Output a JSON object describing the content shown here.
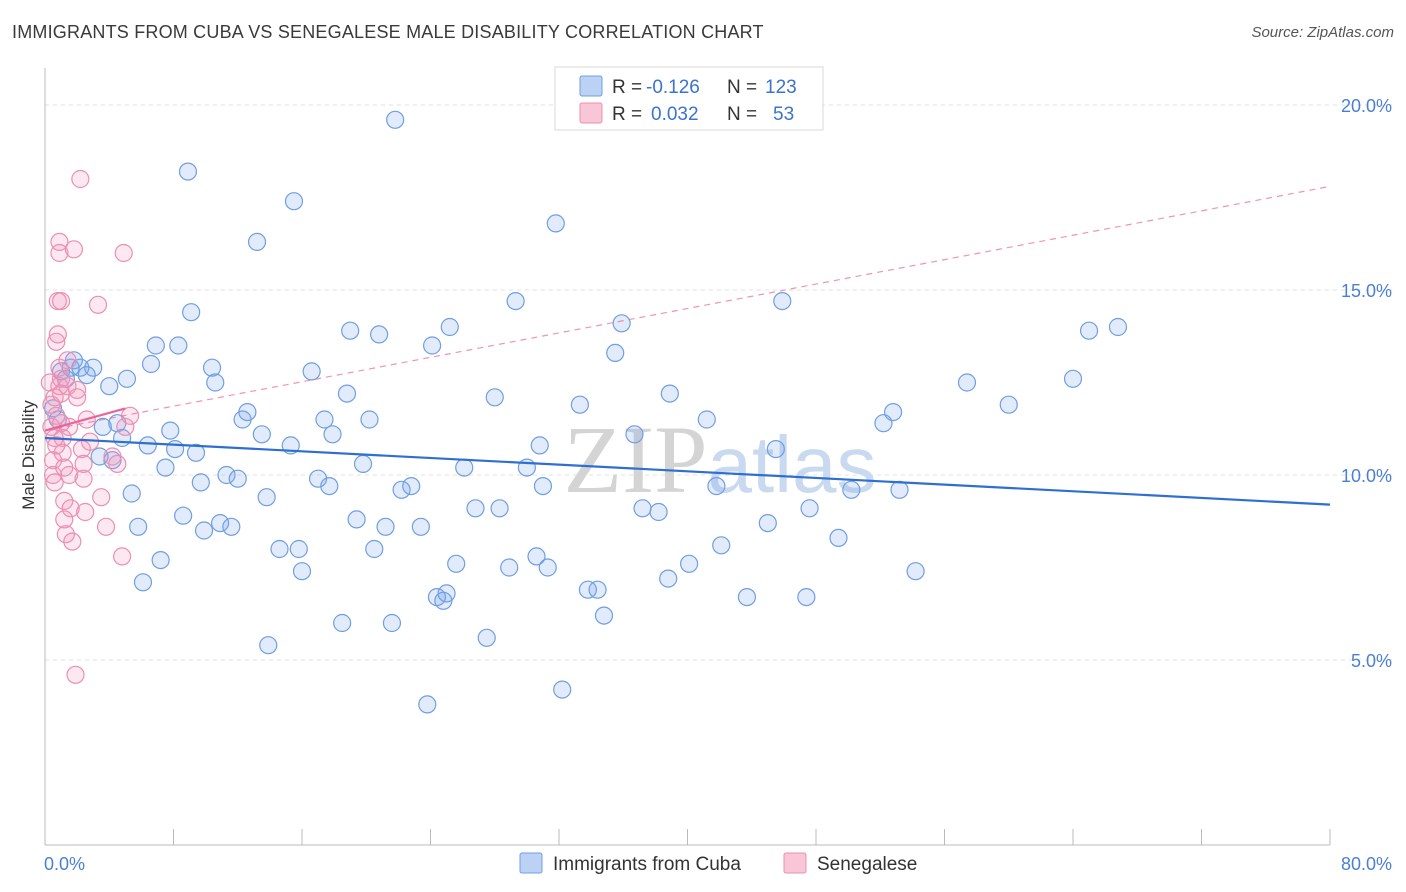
{
  "title": "IMMIGRANTS FROM CUBA VS SENEGALESE MALE DISABILITY CORRELATION CHART",
  "source": "Source: ZipAtlas.com",
  "watermark": "ZIPatlas",
  "colors": {
    "blue_fill": "rgba(120,165,235,0.22)",
    "blue_stroke": "#6f9fe0",
    "blue_line": "#2f6fd0",
    "pink_fill": "rgba(240,150,185,0.22)",
    "pink_stroke": "#ec8fb2",
    "pink_line": "#e8659a",
    "tick_label": "#4a7fd6",
    "grid": "#e2e2e2"
  },
  "stats_legend": [
    {
      "r_label": "R =",
      "r_value": "-0.126",
      "n_label": "N =",
      "n_value": "123"
    },
    {
      "r_label": "R =",
      "r_value": "0.032",
      "n_label": "N =",
      "n_value": "53"
    }
  ],
  "chart_data": {
    "type": "scatter",
    "xlabel": "",
    "ylabel": "Male Disability",
    "xlim": [
      0,
      80
    ],
    "ylim": [
      0,
      21
    ],
    "x_tick_labels": [
      {
        "value": 0,
        "label": "0.0%"
      },
      {
        "value": 80,
        "label": "80.0%"
      }
    ],
    "y_tick_labels": [
      {
        "value": 5,
        "label": "5.0%"
      },
      {
        "value": 10,
        "label": "10.0%"
      },
      {
        "value": 15,
        "label": "15.0%"
      },
      {
        "value": 20,
        "label": "20.0%"
      }
    ],
    "grid": true,
    "legend_position": "bottom",
    "series": [
      {
        "name": "Immigrants from Cuba",
        "color": "#6f9fe0",
        "trend": {
          "x": [
            0,
            80
          ],
          "y": [
            11.0,
            9.2
          ],
          "style": "solid"
        },
        "points": [
          [
            0.5,
            11.8
          ],
          [
            0.8,
            11.5
          ],
          [
            1.0,
            12.8
          ],
          [
            1.3,
            12.6
          ],
          [
            1.6,
            12.9
          ],
          [
            1.8,
            13.1
          ],
          [
            2.2,
            12.9
          ],
          [
            2.6,
            12.7
          ],
          [
            3.0,
            12.9
          ],
          [
            3.4,
            10.5
          ],
          [
            3.6,
            11.3
          ],
          [
            4.0,
            12.4
          ],
          [
            4.2,
            10.4
          ],
          [
            4.5,
            11.4
          ],
          [
            4.8,
            11.0
          ],
          [
            5.1,
            12.6
          ],
          [
            5.4,
            9.5
          ],
          [
            5.8,
            8.6
          ],
          [
            6.1,
            7.1
          ],
          [
            6.4,
            10.8
          ],
          [
            6.6,
            13.0
          ],
          [
            6.9,
            13.5
          ],
          [
            7.2,
            7.7
          ],
          [
            7.5,
            10.2
          ],
          [
            7.8,
            11.2
          ],
          [
            8.1,
            10.7
          ],
          [
            8.3,
            13.5
          ],
          [
            8.6,
            8.9
          ],
          [
            8.9,
            18.2
          ],
          [
            9.1,
            14.4
          ],
          [
            9.4,
            10.6
          ],
          [
            9.7,
            9.8
          ],
          [
            9.9,
            8.5
          ],
          [
            10.4,
            12.9
          ],
          [
            10.6,
            12.5
          ],
          [
            10.9,
            8.7
          ],
          [
            11.3,
            10.0
          ],
          [
            11.6,
            8.6
          ],
          [
            12.0,
            9.9
          ],
          [
            12.3,
            11.5
          ],
          [
            12.6,
            11.7
          ],
          [
            13.2,
            16.3
          ],
          [
            13.5,
            11.1
          ],
          [
            13.8,
            9.4
          ],
          [
            13.9,
            5.4
          ],
          [
            14.6,
            8.0
          ],
          [
            15.3,
            10.8
          ],
          [
            15.5,
            17.4
          ],
          [
            15.8,
            8.0
          ],
          [
            16.0,
            7.4
          ],
          [
            16.6,
            12.8
          ],
          [
            17.0,
            9.9
          ],
          [
            17.4,
            11.5
          ],
          [
            17.7,
            9.7
          ],
          [
            17.9,
            11.1
          ],
          [
            18.5,
            6.0
          ],
          [
            18.8,
            12.2
          ],
          [
            19.0,
            13.9
          ],
          [
            19.4,
            8.8
          ],
          [
            19.8,
            10.3
          ],
          [
            20.2,
            11.5
          ],
          [
            20.5,
            8.0
          ],
          [
            20.8,
            13.8
          ],
          [
            21.2,
            8.6
          ],
          [
            21.6,
            6.0
          ],
          [
            21.8,
            19.6
          ],
          [
            22.2,
            9.6
          ],
          [
            22.8,
            9.7
          ],
          [
            23.4,
            8.6
          ],
          [
            23.8,
            3.8
          ],
          [
            24.1,
            13.5
          ],
          [
            24.4,
            6.7
          ],
          [
            24.8,
            6.6
          ],
          [
            25.0,
            6.8
          ],
          [
            25.2,
            14.0
          ],
          [
            25.6,
            7.6
          ],
          [
            26.1,
            10.2
          ],
          [
            26.8,
            9.1
          ],
          [
            27.5,
            5.6
          ],
          [
            28.0,
            12.1
          ],
          [
            28.3,
            9.1
          ],
          [
            28.9,
            7.5
          ],
          [
            29.3,
            14.7
          ],
          [
            30.0,
            10.2
          ],
          [
            30.6,
            7.8
          ],
          [
            30.8,
            10.8
          ],
          [
            31.0,
            9.7
          ],
          [
            31.3,
            7.5
          ],
          [
            31.8,
            16.8
          ],
          [
            32.2,
            4.2
          ],
          [
            33.3,
            11.9
          ],
          [
            33.8,
            6.9
          ],
          [
            34.4,
            6.9
          ],
          [
            34.8,
            6.2
          ],
          [
            35.5,
            13.3
          ],
          [
            35.9,
            14.1
          ],
          [
            36.7,
            11.1
          ],
          [
            37.2,
            9.1
          ],
          [
            38.2,
            9.0
          ],
          [
            38.8,
            7.2
          ],
          [
            38.9,
            12.2
          ],
          [
            40.1,
            7.6
          ],
          [
            41.2,
            11.5
          ],
          [
            41.8,
            9.7
          ],
          [
            42.1,
            8.1
          ],
          [
            43.7,
            6.7
          ],
          [
            45.0,
            8.7
          ],
          [
            45.5,
            10.7
          ],
          [
            45.9,
            14.7
          ],
          [
            47.4,
            6.7
          ],
          [
            47.6,
            9.1
          ],
          [
            49.4,
            8.3
          ],
          [
            50.2,
            9.6
          ],
          [
            52.2,
            11.4
          ],
          [
            52.8,
            11.7
          ],
          [
            53.2,
            9.6
          ],
          [
            54.2,
            7.4
          ],
          [
            57.4,
            12.5
          ],
          [
            60.0,
            11.9
          ],
          [
            64.0,
            12.6
          ],
          [
            65.0,
            13.9
          ],
          [
            66.8,
            14.0
          ]
        ]
      },
      {
        "name": "Senegalese",
        "color": "#ec8fb2",
        "trend": {
          "solid_x": [
            0,
            5
          ],
          "solid_y": [
            11.2,
            11.8
          ],
          "dashed_x": [
            0,
            80
          ],
          "dashed_y": [
            11.2,
            17.8
          ]
        },
        "points": [
          [
            0.3,
            12.5
          ],
          [
            0.4,
            11.9
          ],
          [
            0.4,
            11.3
          ],
          [
            0.5,
            10.4
          ],
          [
            0.5,
            10.0
          ],
          [
            0.6,
            9.8
          ],
          [
            0.6,
            12.1
          ],
          [
            0.7,
            11.6
          ],
          [
            0.7,
            13.6
          ],
          [
            0.8,
            13.8
          ],
          [
            0.8,
            14.7
          ],
          [
            0.9,
            16.3
          ],
          [
            0.9,
            16.0
          ],
          [
            0.9,
            12.9
          ],
          [
            1.0,
            12.6
          ],
          [
            1.0,
            12.2
          ],
          [
            1.0,
            11.4
          ],
          [
            1.1,
            11.0
          ],
          [
            1.1,
            10.6
          ],
          [
            1.2,
            10.2
          ],
          [
            1.2,
            9.3
          ],
          [
            1.2,
            8.8
          ],
          [
            1.3,
            8.4
          ],
          [
            1.4,
            13.1
          ],
          [
            1.4,
            12.4
          ],
          [
            1.5,
            11.3
          ],
          [
            1.5,
            10.0
          ],
          [
            1.6,
            9.1
          ],
          [
            1.7,
            8.2
          ],
          [
            1.8,
            16.1
          ],
          [
            1.9,
            4.6
          ],
          [
            2.0,
            12.3
          ],
          [
            2.0,
            12.1
          ],
          [
            2.2,
            18.0
          ],
          [
            2.3,
            10.7
          ],
          [
            2.4,
            10.3
          ],
          [
            2.4,
            9.9
          ],
          [
            2.5,
            9.0
          ],
          [
            2.6,
            11.5
          ],
          [
            2.8,
            10.9
          ],
          [
            3.3,
            14.6
          ],
          [
            3.5,
            9.4
          ],
          [
            3.8,
            8.6
          ],
          [
            4.2,
            10.5
          ],
          [
            4.5,
            10.3
          ],
          [
            4.8,
            7.8
          ],
          [
            5.0,
            11.3
          ],
          [
            5.3,
            11.6
          ],
          [
            4.9,
            16.0
          ],
          [
            0.6,
            11.0
          ],
          [
            0.7,
            10.8
          ],
          [
            0.9,
            12.4
          ],
          [
            1.0,
            14.7
          ]
        ]
      }
    ]
  },
  "bottom_legend": [
    {
      "label": "Immigrants from Cuba"
    },
    {
      "label": "Senegalese"
    }
  ]
}
